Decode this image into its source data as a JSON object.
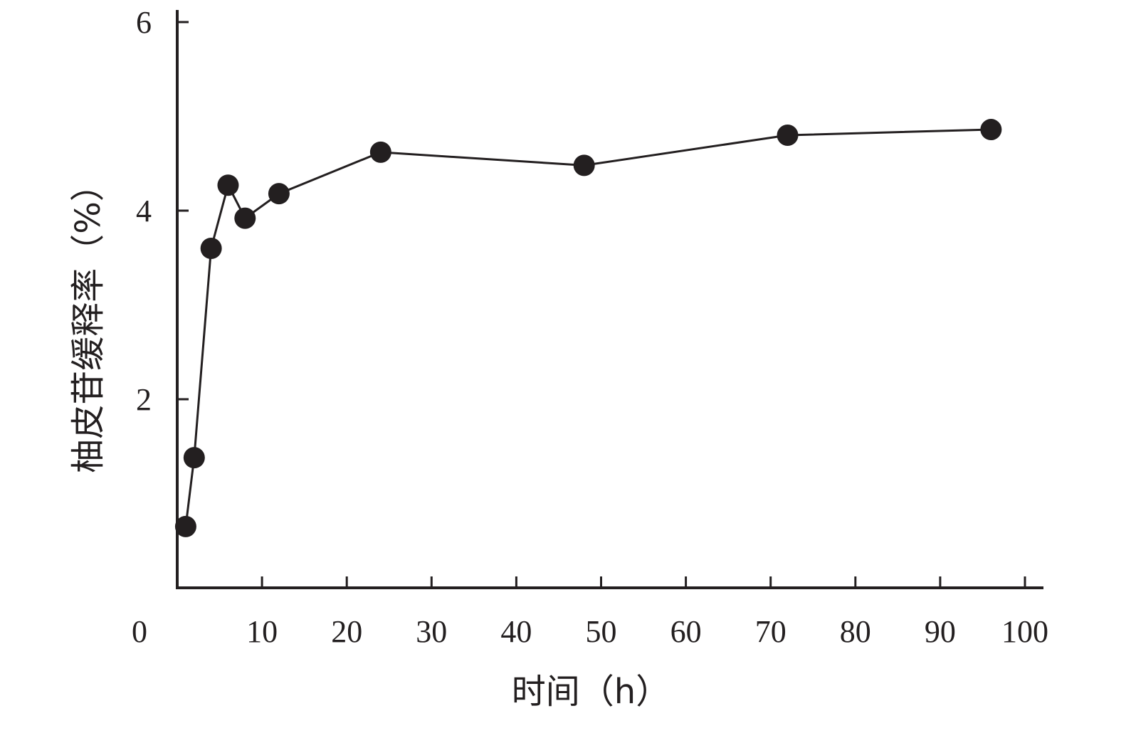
{
  "chart_data": {
    "type": "line",
    "title": "",
    "xlabel": "时间（h）",
    "ylabel": "柚皮苷缓释率（%）",
    "xlim": [
      0,
      100
    ],
    "ylim": [
      0,
      6
    ],
    "x_ticks": [
      0,
      10,
      20,
      30,
      40,
      50,
      60,
      70,
      80,
      90,
      100
    ],
    "x_tick_labels": [
      "0",
      "10",
      "20",
      "30",
      "40",
      "50",
      "60",
      "70",
      "80",
      "90",
      "100"
    ],
    "y_ticks": [
      2,
      4,
      6
    ],
    "y_tick_labels": [
      "2",
      "4",
      "6"
    ],
    "grid": false,
    "legend": "none",
    "series": [
      {
        "x": [
          1,
          2,
          4,
          6,
          8,
          12,
          24,
          48,
          72,
          96
        ],
        "values": [
          0.65,
          1.38,
          3.6,
          4.27,
          3.92,
          4.18,
          4.62,
          4.48,
          4.8,
          4.86
        ],
        "color": "#231f20",
        "marker": "filled-circle"
      }
    ]
  }
}
